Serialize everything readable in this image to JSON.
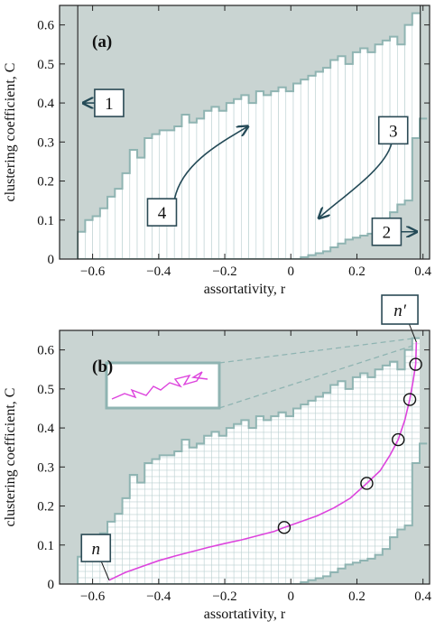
{
  "colors": {
    "forbidden_region": "#c9d4d2",
    "allowed_region": "#ffffff",
    "boundary": "#8fb4b2",
    "grid_lines": "#b9cfd0",
    "trajectory": "#dd44dd",
    "arrows": "#244a57"
  },
  "chart_data": [
    {
      "type": "area",
      "panel": "(a)",
      "xlabel": "assortativity, r",
      "ylabel": "clustering coefficient, C",
      "xlim": [
        -0.7,
        0.42
      ],
      "ylim": [
        0,
        0.65
      ],
      "xticks": [
        "−0.6",
        "−0.4",
        "−0.2",
        "0",
        "0.2",
        "0.4"
      ],
      "xtick_values": [
        -0.6,
        -0.4,
        -0.2,
        0,
        0.2,
        0.4
      ],
      "yticks": [
        "0",
        "0.1",
        "0.2",
        "0.3",
        "0.4",
        "0.5",
        "0.6"
      ],
      "ytick_values": [
        0,
        0.1,
        0.2,
        0.3,
        0.4,
        0.5,
        0.6
      ],
      "grid": false,
      "bin_width": 0.0225,
      "r_min_line": -0.645,
      "r_max_line": 0.392,
      "allowed_upper_C": [
        [
          -0.645,
          0.07
        ],
        [
          -0.6225,
          0.1
        ],
        [
          -0.6,
          0.11
        ],
        [
          -0.5775,
          0.13
        ],
        [
          -0.555,
          0.16
        ],
        [
          -0.5325,
          0.18
        ],
        [
          -0.51,
          0.22
        ],
        [
          -0.4875,
          0.28
        ],
        [
          -0.465,
          0.26
        ],
        [
          -0.4425,
          0.31
        ],
        [
          -0.42,
          0.32
        ],
        [
          -0.3975,
          0.33
        ],
        [
          -0.375,
          0.33
        ],
        [
          -0.3525,
          0.34
        ],
        [
          -0.33,
          0.37
        ],
        [
          -0.3075,
          0.35
        ],
        [
          -0.285,
          0.36
        ],
        [
          -0.2625,
          0.38
        ],
        [
          -0.24,
          0.39
        ],
        [
          -0.2175,
          0.38
        ],
        [
          -0.195,
          0.4
        ],
        [
          -0.1725,
          0.41
        ],
        [
          -0.15,
          0.42
        ],
        [
          -0.1275,
          0.4
        ],
        [
          -0.105,
          0.43
        ],
        [
          -0.0825,
          0.42
        ],
        [
          -0.06,
          0.43
        ],
        [
          -0.0375,
          0.44
        ],
        [
          -0.015,
          0.43
        ],
        [
          0.0075,
          0.45
        ],
        [
          0.03,
          0.46
        ],
        [
          0.0525,
          0.47
        ],
        [
          0.075,
          0.48
        ],
        [
          0.0975,
          0.49
        ],
        [
          0.12,
          0.51
        ],
        [
          0.1425,
          0.52
        ],
        [
          0.165,
          0.5
        ],
        [
          0.1875,
          0.53
        ],
        [
          0.21,
          0.54
        ],
        [
          0.2325,
          0.53
        ],
        [
          0.255,
          0.55
        ],
        [
          0.2775,
          0.56
        ],
        [
          0.3,
          0.57
        ],
        [
          0.3225,
          0.55
        ],
        [
          0.345,
          0.6
        ],
        [
          0.3675,
          0.63
        ]
      ],
      "allowed_lower_C": [
        [
          -0.645,
          0
        ],
        [
          0.03,
          0.005
        ],
        [
          0.0525,
          0.01
        ],
        [
          0.075,
          0.015
        ],
        [
          0.0975,
          0.02
        ],
        [
          0.12,
          0.03
        ],
        [
          0.1425,
          0.04
        ],
        [
          0.165,
          0.05
        ],
        [
          0.1875,
          0.055
        ],
        [
          0.21,
          0.06
        ],
        [
          0.2325,
          0.065
        ],
        [
          0.255,
          0.075
        ],
        [
          0.2775,
          0.09
        ],
        [
          0.3,
          0.12
        ],
        [
          0.3225,
          0.14
        ],
        [
          0.345,
          0.15
        ],
        [
          0.3675,
          0.31
        ],
        [
          0.39,
          0.36
        ]
      ],
      "annotations": [
        {
          "label": "1",
          "arrow": "left",
          "r": -0.55,
          "C": 0.4
        },
        {
          "label": "2",
          "arrow": "right",
          "r": 0.29,
          "C": 0.07
        },
        {
          "label": "3",
          "arrow": "down-left",
          "r": 0.31,
          "C": 0.33
        },
        {
          "label": "4",
          "arrow": "up-right",
          "r": -0.56,
          "C": 0.12
        }
      ]
    },
    {
      "type": "line",
      "panel": "(b)",
      "xlabel": "assortativity, r",
      "ylabel": "clustering coefficient, C",
      "xlim": [
        -0.7,
        0.42
      ],
      "ylim": [
        0,
        0.65
      ],
      "xticks": [
        "−0.6",
        "−0.4",
        "−0.2",
        "0",
        "0.2",
        "0.4"
      ],
      "xtick_values": [
        -0.6,
        -0.4,
        -0.2,
        0,
        0.2,
        0.4
      ],
      "yticks": [
        "0",
        "0.1",
        "0.2",
        "0.3",
        "0.4",
        "0.5",
        "0.6"
      ],
      "ytick_values": [
        0,
        0.1,
        0.2,
        0.3,
        0.4,
        0.5,
        0.6
      ],
      "grid": true,
      "trajectory": [
        [
          -0.55,
          0.01
        ],
        [
          -0.5,
          0.03
        ],
        [
          -0.45,
          0.045
        ],
        [
          -0.4,
          0.06
        ],
        [
          -0.35,
          0.072
        ],
        [
          -0.3,
          0.083
        ],
        [
          -0.25,
          0.094
        ],
        [
          -0.2,
          0.104
        ],
        [
          -0.15,
          0.113
        ],
        [
          -0.1,
          0.124
        ],
        [
          -0.05,
          0.135
        ],
        [
          -0.02,
          0.145
        ],
        [
          0.03,
          0.16
        ],
        [
          0.08,
          0.175
        ],
        [
          0.13,
          0.195
        ],
        [
          0.18,
          0.22
        ],
        [
          0.23,
          0.258
        ],
        [
          0.27,
          0.29
        ],
        [
          0.3,
          0.33
        ],
        [
          0.325,
          0.37
        ],
        [
          0.345,
          0.42
        ],
        [
          0.36,
          0.473
        ],
        [
          0.37,
          0.52
        ],
        [
          0.378,
          0.563
        ],
        [
          0.38,
          0.62
        ]
      ],
      "markers": [
        [
          -0.02,
          0.145
        ],
        [
          0.23,
          0.258
        ],
        [
          0.325,
          0.37
        ],
        [
          0.36,
          0.473
        ],
        [
          0.378,
          0.563
        ]
      ],
      "start_label": "n",
      "end_label": "n′"
    }
  ],
  "panel_a": {
    "label": "(a)",
    "xlabel": "assortativity, r",
    "ylabel": "clustering coefficient, C",
    "callouts": [
      "1",
      "2",
      "3",
      "4"
    ]
  },
  "panel_b": {
    "label": "(b)",
    "xlabel": "assortativity, r",
    "ylabel": "clustering coefficient, C",
    "start_label": "n",
    "end_label": "n′"
  }
}
